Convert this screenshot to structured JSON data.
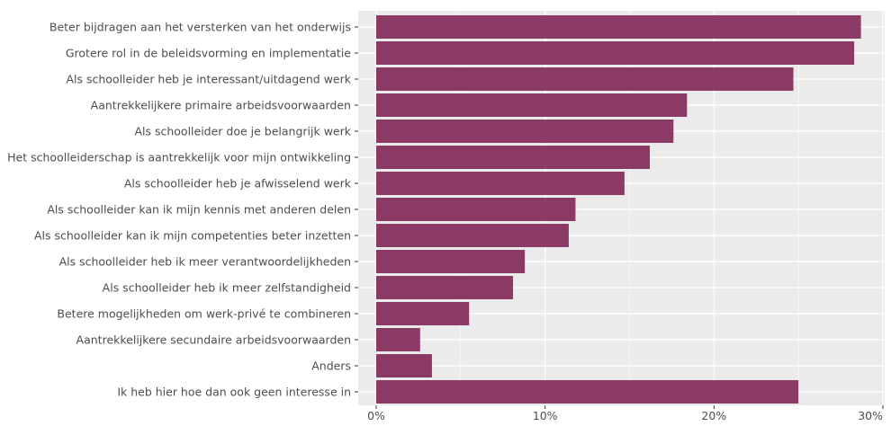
{
  "chart_data": {
    "type": "bar",
    "orientation": "horizontal",
    "categories": [
      "Beter bijdragen aan het versterken van het onderwijs",
      "Grotere rol in de beleidsvorming en implementatie",
      "Als schoolleider heb je interessant/uitdagend werk",
      "Aantrekkelijkere primaire arbeidsvoorwaarden",
      "Als schoolleider doe je belangrijk werk",
      "Het schoolleiderschap is aantrekkelijk voor mijn ontwikkeling",
      "Als schoolleider heb je afwisselend werk",
      "Als schoolleider kan ik mijn kennis met anderen delen",
      "Als schoolleider kan ik mijn competenties beter inzetten",
      "Als schoolleider heb ik meer verantwoordelijkheden",
      "Als schoolleider heb ik meer zelfstandigheid",
      "Betere mogelijkheden om werk-privé te combineren",
      "Aantrekkelijkere secundaire arbeidsvoorwaarden",
      "Anders",
      "Ik heb hier hoe dan ook geen interesse in"
    ],
    "values": [
      28.7,
      28.3,
      24.7,
      18.4,
      17.6,
      16.2,
      14.7,
      11.8,
      11.4,
      8.8,
      8.1,
      5.5,
      2.6,
      3.3,
      25.0
    ],
    "xlim": [
      0,
      30
    ],
    "xticks": [
      0,
      10,
      20,
      30
    ],
    "xtick_labels": [
      "0%",
      "10%",
      "20%",
      "30%"
    ],
    "grid": true,
    "bar_color": "#8b3a66",
    "panel_background": "#ebebeb",
    "gridline_color": "#ffffff"
  }
}
